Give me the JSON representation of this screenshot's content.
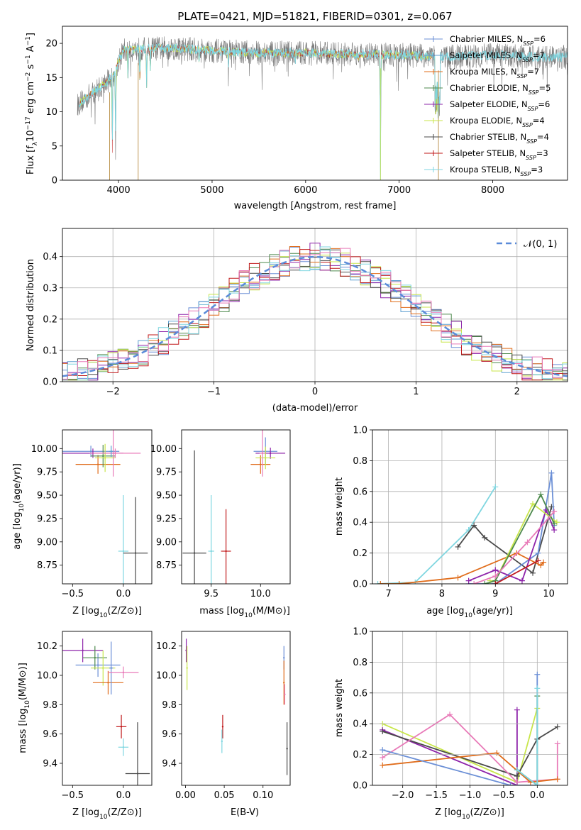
{
  "colors": {
    "Chabrier MILES": "#6b8fd6",
    "Salpeter MILES": "#5c9fd0",
    "Kroupa MILES": "#e06c1a",
    "Chabrier ELODIE": "#4e8a4e",
    "Salpeter ELODIE": "#8e24aa",
    "Kroupa ELODIE": "#c8e64a",
    "Chabrier STELIB": "#4a4a4a",
    "Salpeter STELIB": "#c0181a",
    "Kroupa STELIB": "#7fd6e0",
    "Pink": "#e87ab8",
    "normal": "#5b8bd9"
  },
  "chart_data": [
    {
      "id": "spectrum",
      "type": "line",
      "title": "PLATE=0421, MJD=51821, FIBERID=0301, z=0.067",
      "xlabel": "wavelength [Angstrom, rest frame]",
      "ylabel": "Flux [f",
      "xlim": [
        3400,
        8800
      ],
      "ylim": [
        0,
        22.5
      ],
      "xticks": [
        4000,
        5000,
        6000,
        7000,
        8000
      ],
      "yticks": [
        0,
        5,
        10,
        15,
        20
      ],
      "legend_position": "top-right",
      "legend": [
        {
          "base": "Chabrier MILES, N",
          "sub": "SSP",
          "tail": "=6",
          "color": "Chabrier MILES"
        },
        {
          "base": "Salpeter MILES, N",
          "sub": "SSP",
          "tail": "=7",
          "color": "Salpeter MILES"
        },
        {
          "base": "Kroupa MILES, N",
          "sub": "SSP",
          "tail": "=7",
          "color": "Kroupa MILES"
        },
        {
          "base": "Chabrier ELODIE, N",
          "sub": "SSP",
          "tail": "=5",
          "color": "Chabrier ELODIE"
        },
        {
          "base": "Salpeter ELODIE, N",
          "sub": "SSP",
          "tail": "=6",
          "color": "Salpeter ELODIE"
        },
        {
          "base": "Kroupa ELODIE, N",
          "sub": "SSP",
          "tail": "=4",
          "color": "Kroupa ELODIE"
        },
        {
          "base": "Chabrier STELIB, N",
          "sub": "SSP",
          "tail": "=4",
          "color": "Chabrier STELIB"
        },
        {
          "base": "Salpeter STELIB, N",
          "sub": "SSP",
          "tail": "=3",
          "color": "Salpeter STELIB"
        },
        {
          "base": "Kroupa STELIB, N",
          "sub": "SSP",
          "tail": "=3",
          "color": "Kroupa STELIB"
        }
      ],
      "continuum": [
        [
          3560,
          11
        ],
        [
          3700,
          12.5
        ],
        [
          3850,
          14
        ],
        [
          3950,
          15.5
        ],
        [
          4050,
          19
        ],
        [
          4300,
          19.2
        ],
        [
          4600,
          19.3
        ],
        [
          5000,
          18.9
        ],
        [
          5500,
          18.6
        ],
        [
          6000,
          18.6
        ],
        [
          6500,
          18.4
        ],
        [
          7000,
          18.3
        ],
        [
          7500,
          18
        ],
        [
          8000,
          18.3
        ],
        [
          8500,
          18
        ]
      ],
      "absorption": [
        [
          3934,
          4
        ],
        [
          3968,
          3
        ],
        [
          4101,
          14
        ],
        [
          4227,
          14
        ],
        [
          4300,
          13.5
        ],
        [
          4340,
          16
        ],
        [
          4861,
          17
        ],
        [
          5175,
          16.5
        ],
        [
          5890,
          17
        ],
        [
          6563,
          17.5
        ],
        [
          6800,
          0
        ]
      ]
    },
    {
      "id": "residuals",
      "type": "line",
      "xlabel": "(data-model)/error",
      "ylabel": "Normed distribution",
      "xlim": [
        -2.5,
        2.5
      ],
      "ylim": [
        0,
        0.49
      ],
      "xticks": [
        -2,
        -1,
        0,
        1,
        2
      ],
      "yticks": [
        0.0,
        0.1,
        0.2,
        0.3,
        0.4
      ],
      "legend": "𝒩(0, 1)",
      "legend_position": "top-right",
      "grid": true
    },
    {
      "id": "age_vs_Z",
      "type": "scatter",
      "xlabel": "Z [log",
      "ylabel": "age  [log",
      "xlim": [
        -0.6,
        0.28
      ],
      "ylim": [
        8.55,
        10.2
      ],
      "xticks": [
        -0.5,
        0.0
      ],
      "yticks": [
        8.75,
        9.0,
        9.25,
        9.5,
        9.75,
        10.0
      ],
      "points": [
        {
          "x": -0.32,
          "y": 9.97,
          "ex": 0.28,
          "ey": 0.06,
          "c": "Chabrier MILES"
        },
        {
          "x": -0.3,
          "y": 9.95,
          "ex": 0.3,
          "ey": 0.05,
          "c": "Salpeter ELODIE"
        },
        {
          "x": -0.25,
          "y": 9.83,
          "ex": 0.22,
          "ey": 0.1,
          "c": "Kroupa MILES"
        },
        {
          "x": -0.2,
          "y": 9.92,
          "ex": 0.12,
          "ey": 0.12,
          "c": "Chabrier ELODIE"
        },
        {
          "x": -0.18,
          "y": 9.9,
          "ex": 0.1,
          "ey": 0.15,
          "c": "Kroupa ELODIE"
        },
        {
          "x": -0.08,
          "y": 9.95,
          "ex": 0.25,
          "ey": 0.05,
          "c": "Pink"
        },
        {
          "x": -0.1,
          "y": 9.95,
          "ex": 0.05,
          "ey": 0.25,
          "c": "Pink"
        },
        {
          "x": 0.0,
          "y": 8.9,
          "ex": 0.05,
          "ey": 0.6,
          "c": "Kroupa STELIB"
        },
        {
          "x": 0.12,
          "y": 8.88,
          "ex": 0.12,
          "ey": 0.6,
          "c": "Chabrier STELIB"
        },
        {
          "x": -0.12,
          "y": 9.97,
          "ex": 0.02,
          "ey": 0.06,
          "c": "Salpeter MILES"
        }
      ]
    },
    {
      "id": "age_vs_mass",
      "type": "scatter",
      "xlabel": "mass [log",
      "ylabel": "",
      "xlim": [
        9.2,
        10.3
      ],
      "ylim": [
        8.55,
        10.2
      ],
      "xticks": [
        9.5,
        10.0
      ],
      "yticks": [
        8.75,
        9.0,
        9.25,
        9.5,
        9.75,
        10.0
      ],
      "points": [
        {
          "x": 10.05,
          "y": 9.97,
          "ex": 0.12,
          "ey": 0.15,
          "c": "Chabrier MILES"
        },
        {
          "x": 10.1,
          "y": 9.95,
          "ex": 0.15,
          "ey": 0.06,
          "c": "Salpeter ELODIE"
        },
        {
          "x": 10.0,
          "y": 9.83,
          "ex": 0.1,
          "ey": 0.1,
          "c": "Kroupa MILES"
        },
        {
          "x": 10.05,
          "y": 9.9,
          "ex": 0.1,
          "ey": 0.12,
          "c": "Kroupa ELODIE"
        },
        {
          "x": 10.02,
          "y": 9.95,
          "ex": 0.03,
          "ey": 0.25,
          "c": "Pink"
        },
        {
          "x": 9.5,
          "y": 8.9,
          "ex": 0.03,
          "ey": 0.6,
          "c": "Kroupa STELIB"
        },
        {
          "x": 9.33,
          "y": 8.88,
          "ex": 0.12,
          "ey": 1.1,
          "c": "Chabrier STELIB"
        },
        {
          "x": 9.65,
          "y": 8.9,
          "ex": 0.05,
          "ey": 0.45,
          "c": "Salpeter STELIB"
        }
      ]
    },
    {
      "id": "weight_vs_age",
      "type": "line",
      "xlabel": "age  [log",
      "ylabel": "mass weight",
      "xlim": [
        6.7,
        10.35
      ],
      "ylim": [
        0,
        1.0
      ],
      "xticks": [
        7,
        8,
        9,
        10
      ],
      "yticks": [
        0.0,
        0.2,
        0.4,
        0.6,
        0.8,
        1.0
      ],
      "grid": true,
      "series": [
        {
          "c": "Kroupa STELIB",
          "x": [
            6.8,
            7.5,
            8.5,
            9.0
          ],
          "y": [
            0.0,
            0.01,
            0.35,
            0.63
          ]
        },
        {
          "c": "Chabrier STELIB",
          "x": [
            8.3,
            8.6,
            8.8,
            9.7,
            10.05
          ],
          "y": [
            0.24,
            0.38,
            0.3,
            0.07,
            0.5
          ]
        },
        {
          "c": "Chabrier MILES",
          "x": [
            8.5,
            9.0,
            9.8,
            10.05,
            10.1
          ],
          "y": [
            0.0,
            0.0,
            0.2,
            0.72,
            0.38
          ]
        },
        {
          "c": "Kroupa MILES",
          "x": [
            6.85,
            7.2,
            8.3,
            9.4,
            9.85,
            9.9
          ],
          "y": [
            0.0,
            0.0,
            0.04,
            0.2,
            0.12,
            0.14
          ]
        },
        {
          "c": "Salpeter ELODIE",
          "x": [
            8.5,
            9.0,
            9.5,
            9.95,
            10.1
          ],
          "y": [
            0.02,
            0.09,
            0.02,
            0.48,
            0.35
          ]
        },
        {
          "c": "Kroupa ELODIE",
          "x": [
            8.9,
            9.0,
            9.7,
            10.15
          ],
          "y": [
            0.02,
            0.02,
            0.52,
            0.4
          ]
        },
        {
          "c": "Chabrier ELODIE",
          "x": [
            8.8,
            9.0,
            9.85,
            10.1
          ],
          "y": [
            0.0,
            0.02,
            0.58,
            0.39
          ]
        },
        {
          "c": "Pink",
          "x": [
            8.6,
            9.0,
            9.6,
            10.1
          ],
          "y": [
            0.0,
            0.05,
            0.27,
            0.47
          ]
        },
        {
          "c": "Salpeter STELIB",
          "x": [
            9.0,
            9.8
          ],
          "y": [
            0.0,
            0.15
          ]
        }
      ]
    },
    {
      "id": "mass_vs_Z",
      "type": "scatter",
      "xlabel": "Z [log",
      "ylabel": "mass [log",
      "xlim": [
        -0.6,
        0.28
      ],
      "ylim": [
        9.25,
        10.3
      ],
      "xticks": [
        -0.5,
        0.0
      ],
      "yticks": [
        9.4,
        9.6,
        9.8,
        10.0,
        10.2
      ],
      "points": [
        {
          "x": -0.4,
          "y": 10.17,
          "ex": 0.2,
          "ey": 0.08,
          "c": "Salpeter ELODIE"
        },
        {
          "x": -0.25,
          "y": 10.07,
          "ex": 0.22,
          "ey": 0.08,
          "c": "Chabrier MILES"
        },
        {
          "x": -0.28,
          "y": 10.12,
          "ex": 0.12,
          "ey": 0.08,
          "c": "Chabrier ELODIE"
        },
        {
          "x": -0.2,
          "y": 10.05,
          "ex": 0.12,
          "ey": 0.12,
          "c": "Kroupa ELODIE"
        },
        {
          "x": -0.15,
          "y": 9.95,
          "ex": 0.15,
          "ey": 0.08,
          "c": "Kroupa MILES"
        },
        {
          "x": -0.12,
          "y": 10.05,
          "ex": 0.02,
          "ey": 0.18,
          "c": "Chabrier MILES"
        },
        {
          "x": 0.0,
          "y": 10.02,
          "ex": 0.15,
          "ey": 0.04,
          "c": "Pink"
        },
        {
          "x": -0.02,
          "y": 9.65,
          "ex": 0.05,
          "ey": 0.08,
          "c": "Salpeter STELIB"
        },
        {
          "x": 0.0,
          "y": 9.51,
          "ex": 0.05,
          "ey": 0.06,
          "c": "Kroupa STELIB"
        },
        {
          "x": 0.14,
          "y": 9.33,
          "ex": 0.12,
          "ey": 0.35,
          "c": "Chabrier STELIB"
        }
      ]
    },
    {
      "id": "mass_vs_EBV",
      "type": "scatter",
      "xlabel": "E(B-V)",
      "ylabel": "",
      "xlim": [
        -0.005,
        0.135
      ],
      "ylim": [
        9.25,
        10.3
      ],
      "xticks": [
        0.0,
        0.05,
        0.1
      ],
      "yticks": [
        9.4,
        9.6,
        9.8,
        10.0,
        10.2
      ],
      "points": [
        {
          "x": 0.001,
          "y": 10.17,
          "ex": 0,
          "ey": 0.08,
          "c": "Salpeter ELODIE"
        },
        {
          "x": 0.002,
          "y": 10.05,
          "ex": 0,
          "ey": 0.15,
          "c": "Kroupa ELODIE"
        },
        {
          "x": 0.048,
          "y": 9.65,
          "ex": 0,
          "ey": 0.08,
          "c": "Salpeter STELIB"
        },
        {
          "x": 0.047,
          "y": 9.55,
          "ex": 0,
          "ey": 0.08,
          "c": "Kroupa STELIB"
        },
        {
          "x": 0.127,
          "y": 10.12,
          "ex": 0,
          "ey": 0.08,
          "c": "Chabrier MILES"
        },
        {
          "x": 0.127,
          "y": 9.95,
          "ex": 0,
          "ey": 0.15,
          "c": "Kroupa MILES"
        },
        {
          "x": 0.128,
          "y": 9.87,
          "ex": 0,
          "ey": 0.07,
          "c": "Pink"
        },
        {
          "x": 0.131,
          "y": 9.5,
          "ex": 0,
          "ey": 0.18,
          "c": "Chabrier STELIB"
        }
      ]
    },
    {
      "id": "weight_vs_Z",
      "type": "line",
      "xlabel": "Z [log",
      "ylabel": "mass weight",
      "xlim": [
        -2.45,
        0.45
      ],
      "ylim": [
        0,
        1.0
      ],
      "xticks": [
        -2.0,
        -1.5,
        -1.0,
        -0.5,
        0.0
      ],
      "grid": true,
      "series": [
        {
          "c": "Kroupa ELODIE",
          "x": [
            -2.3,
            -0.3,
            0.0
          ],
          "y": [
            0.4,
            0.02,
            0.5
          ]
        },
        {
          "c": "Salpeter ELODIE",
          "x": [
            -2.3,
            -0.3,
            -0.3
          ],
          "y": [
            0.36,
            0.0,
            0.49
          ]
        },
        {
          "c": "Chabrier STELIB",
          "x": [
            -2.3,
            -0.3,
            0.0,
            0.3
          ],
          "y": [
            0.35,
            0.06,
            0.3,
            0.38
          ]
        },
        {
          "c": "Pink",
          "x": [
            -2.3,
            -1.3,
            -0.3,
            0.3,
            0.3
          ],
          "y": [
            0.18,
            0.46,
            0.02,
            0.04,
            0.27
          ]
        },
        {
          "c": "Kroupa MILES",
          "x": [
            -2.3,
            -0.6,
            -0.1,
            0.3
          ],
          "y": [
            0.13,
            0.21,
            0.02,
            0.04
          ]
        },
        {
          "c": "Chabrier MILES",
          "x": [
            -2.3,
            -0.4,
            0.0,
            0.0
          ],
          "y": [
            0.23,
            0.0,
            0.0,
            0.72
          ]
        },
        {
          "c": "Chabrier ELODIE",
          "x": [
            -0.3,
            0.0,
            0.0
          ],
          "y": [
            0.1,
            0.0,
            0.58
          ]
        },
        {
          "c": "Kroupa STELIB",
          "x": [
            -0.3,
            0.0,
            0.0
          ],
          "y": [
            0.1,
            0.0,
            0.63
          ]
        }
      ]
    }
  ]
}
